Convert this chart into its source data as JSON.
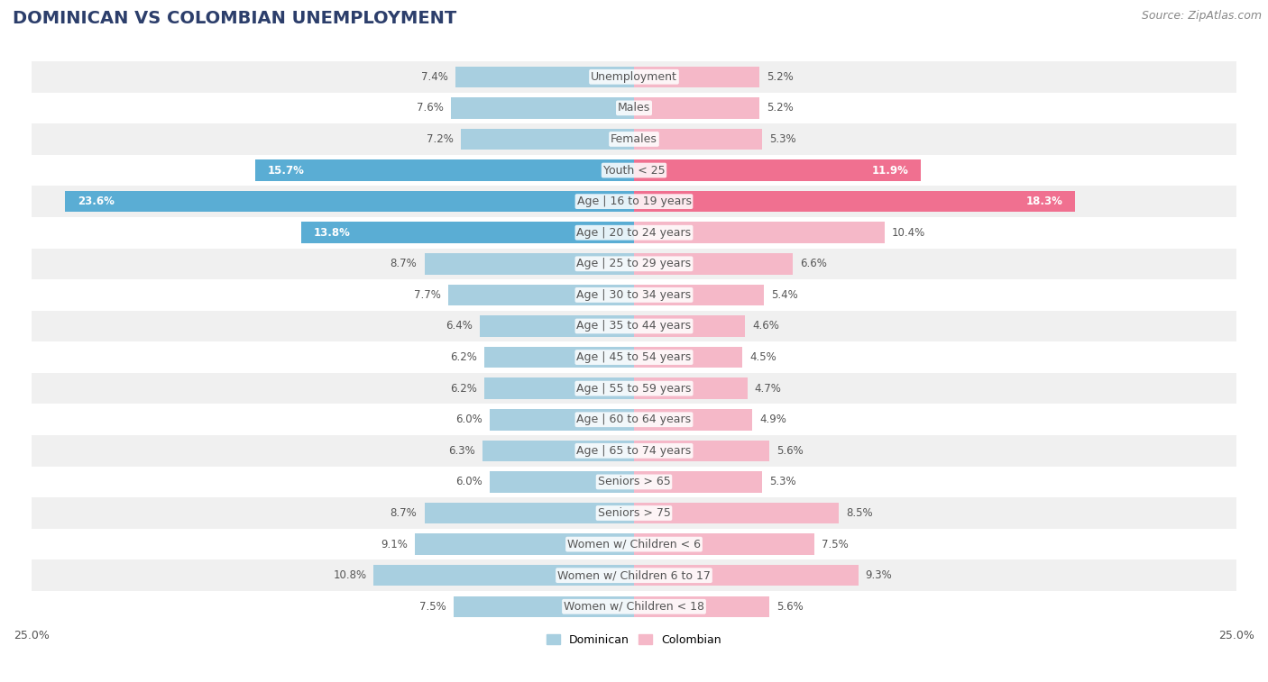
{
  "title": "DOMINICAN VS COLOMBIAN UNEMPLOYMENT",
  "source": "Source: ZipAtlas.com",
  "categories": [
    "Unemployment",
    "Males",
    "Females",
    "Youth < 25",
    "Age | 16 to 19 years",
    "Age | 20 to 24 years",
    "Age | 25 to 29 years",
    "Age | 30 to 34 years",
    "Age | 35 to 44 years",
    "Age | 45 to 54 years",
    "Age | 55 to 59 years",
    "Age | 60 to 64 years",
    "Age | 65 to 74 years",
    "Seniors > 65",
    "Seniors > 75",
    "Women w/ Children < 6",
    "Women w/ Children 6 to 17",
    "Women w/ Children < 18"
  ],
  "dominican": [
    7.4,
    7.6,
    7.2,
    15.7,
    23.6,
    13.8,
    8.7,
    7.7,
    6.4,
    6.2,
    6.2,
    6.0,
    6.3,
    6.0,
    8.7,
    9.1,
    10.8,
    7.5
  ],
  "colombian": [
    5.2,
    5.2,
    5.3,
    11.9,
    18.3,
    10.4,
    6.6,
    5.4,
    4.6,
    4.5,
    4.7,
    4.9,
    5.6,
    5.3,
    8.5,
    7.5,
    9.3,
    5.6
  ],
  "dominican_color_normal": "#a8cfe0",
  "dominican_color_highlight": "#5aadd4",
  "colombian_color_normal": "#f5b8c8",
  "colombian_color_highlight": "#f07090",
  "highlight_threshold_dom": 13.0,
  "highlight_threshold_col": 11.0,
  "bar_height": 0.68,
  "xlim": 25.0,
  "background_color": "#ffffff",
  "row_odd_color": "#f0f0f0",
  "row_even_color": "#ffffff",
  "title_fontsize": 14,
  "label_fontsize": 9,
  "value_fontsize": 8.5,
  "tick_fontsize": 9,
  "source_fontsize": 9,
  "title_color": "#2c3e6b",
  "source_color": "#888888",
  "text_color": "#555555",
  "value_color_normal": "#555555",
  "value_color_white": "#ffffff"
}
